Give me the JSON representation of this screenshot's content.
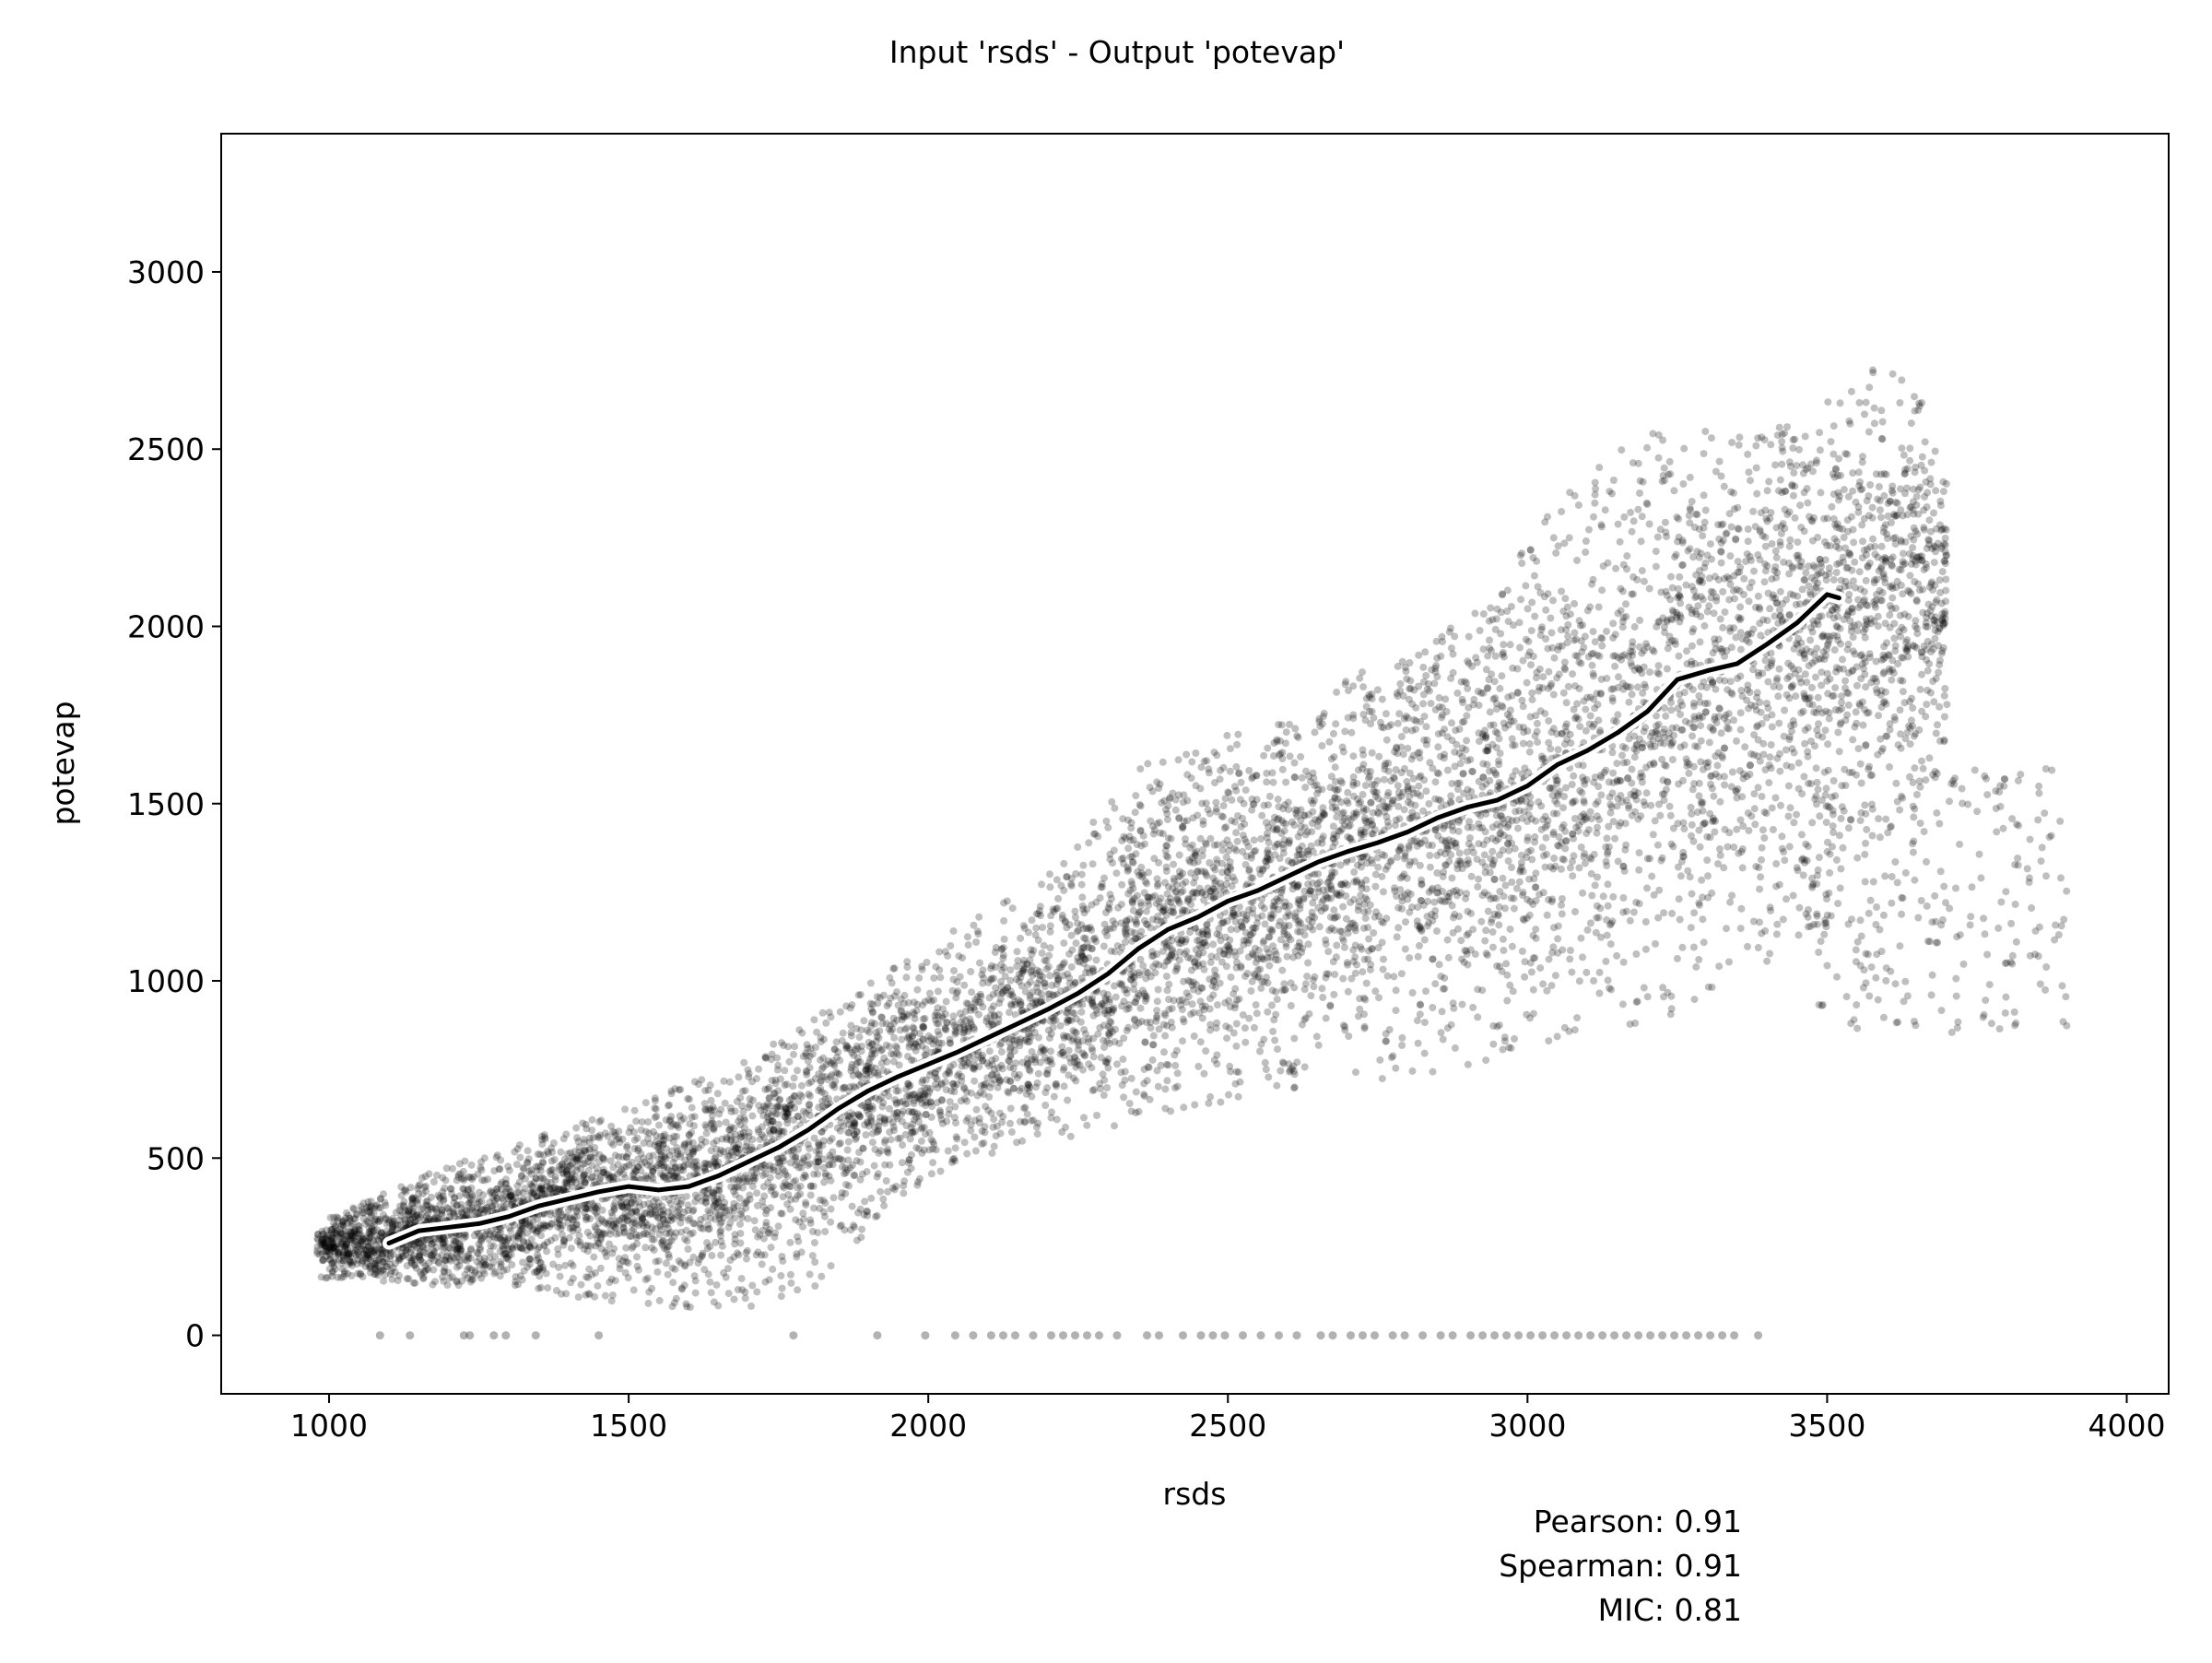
{
  "chart_data": {
    "type": "scatter",
    "title": "Input 'rsds' - Output 'potevap'",
    "xlabel": "rsds",
    "ylabel": "potevap",
    "xlim": [
      820,
      4070
    ],
    "ylim": [
      -165,
      3390
    ],
    "xticks": [
      1000,
      1500,
      2000,
      2500,
      3000,
      3500,
      4000
    ],
    "xtick_labels": [
      "1000",
      "1500",
      "2000",
      "2500",
      "3000",
      "3500",
      "4000"
    ],
    "yticks": [
      0,
      500,
      1000,
      1500,
      2000,
      2500,
      3000
    ],
    "ytick_labels": [
      "0",
      "500",
      "1000",
      "1500",
      "2000",
      "2500",
      "3000"
    ],
    "grid": false,
    "legend": "none",
    "point_color": "#000000",
    "point_opacity": 0.25,
    "trend_color": "#000000",
    "trend_halo_color": "#ffffff",
    "stats": [
      {
        "label": "Pearson: 0.91"
      },
      {
        "label": "Spearman: 0.91"
      },
      {
        "label": "MIC: 0.81"
      }
    ],
    "series": [
      {
        "kind": "trend",
        "x": [
          1100,
          1150,
          1200,
          1250,
          1300,
          1350,
          1400,
          1450,
          1500,
          1550,
          1600,
          1650,
          1700,
          1750,
          1800,
          1850,
          1900,
          1950,
          2000,
          2050,
          2100,
          2150,
          2200,
          2250,
          2300,
          2350,
          2400,
          2450,
          2500,
          2550,
          2600,
          2650,
          2700,
          2750,
          2800,
          2850,
          2900,
          2950,
          3000,
          3050,
          3100,
          3150,
          3200,
          3250,
          3300,
          3350,
          3400,
          3450,
          3500,
          3520
        ],
        "y": [
          260,
          295,
          305,
          315,
          335,
          365,
          385,
          405,
          420,
          410,
          420,
          450,
          490,
          530,
          580,
          640,
          690,
          730,
          765,
          800,
          840,
          880,
          920,
          965,
          1020,
          1090,
          1145,
          1180,
          1225,
          1255,
          1295,
          1335,
          1365,
          1390,
          1420,
          1460,
          1490,
          1510,
          1550,
          1610,
          1650,
          1700,
          1760,
          1850,
          1875,
          1895,
          1950,
          2010,
          2090,
          2080
        ]
      },
      {
        "kind": "cloud",
        "x": [
          980,
          1000,
          1050,
          1100,
          1150,
          1200,
          1250,
          1300,
          1350,
          1400,
          1450,
          1500,
          1550,
          1600,
          1650,
          1700,
          1750,
          1800,
          1850,
          1900,
          1950,
          2000,
          2050,
          2100,
          2150,
          2200,
          2250,
          2300,
          2350,
          2400,
          2450,
          2500,
          2550,
          2600,
          2650,
          2700,
          2750,
          2800,
          2850,
          2900,
          2950,
          3000,
          3050,
          3100,
          3150,
          3200,
          3250,
          3300,
          3350,
          3400,
          3450,
          3500,
          3550,
          3600,
          3650,
          3700
        ],
        "y_low": [
          160,
          160,
          160,
          150,
          145,
          140,
          135,
          130,
          120,
          110,
          100,
          90,
          80,
          75,
          75,
          80,
          90,
          110,
          200,
          300,
          360,
          420,
          470,
          500,
          520,
          540,
          560,
          580,
          600,
          620,
          640,
          660,
          680,
          690,
          700,
          710,
          720,
          730,
          740,
          760,
          780,
          800,
          820,
          840,
          860,
          880,
          900,
          950,
          1000,
          1050,
          1100,
          1200,
          1300,
          1400,
          1500,
          1600
        ],
        "y_high": [
          300,
          330,
          380,
          420,
          450,
          480,
          510,
          540,
          560,
          590,
          620,
          650,
          680,
          710,
          740,
          780,
          830,
          880,
          950,
          1000,
          1050,
          1100,
          1150,
          1200,
          1250,
          1300,
          1400,
          1500,
          1600,
          1650,
          1650,
          1700,
          1700,
          1750,
          1800,
          1850,
          1900,
          1950,
          2000,
          2050,
          2150,
          2250,
          2350,
          2450,
          2500,
          2550,
          2550,
          2550,
          2550,
          2550,
          2600,
          2650,
          2700,
          2750,
          2700,
          2400
        ]
      },
      {
        "kind": "zeros",
        "x": [
          1085,
          1135,
          1225,
          1235,
          1275,
          1295,
          1345,
          1450,
          1775,
          1915,
          1995,
          2045,
          2075,
          2105,
          2125,
          2145,
          2175,
          2205,
          2225,
          2245,
          2265,
          2285,
          2315,
          2365,
          2385,
          2425,
          2455,
          2475,
          2495,
          2525,
          2555,
          2585,
          2615,
          2655,
          2675,
          2705,
          2725,
          2745,
          2775,
          2795,
          2825,
          2855,
          2875,
          2905,
          2925,
          2945,
          2965,
          2985,
          3005,
          3025,
          3045,
          3065,
          3085,
          3105,
          3125,
          3145,
          3165,
          3185,
          3205,
          3225,
          3245,
          3265,
          3285,
          3305,
          3325,
          3345,
          3385
        ]
      }
    ]
  }
}
